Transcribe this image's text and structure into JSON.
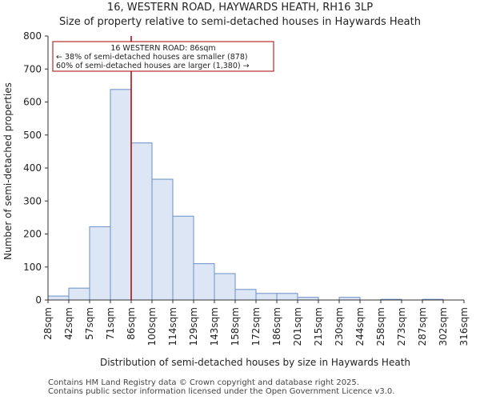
{
  "chart_data": {
    "type": "bar",
    "title": "16, WESTERN ROAD, HAYWARDS HEATH, RH16 3LP",
    "subtitle": "Size of property relative to semi-detached houses in Haywards Heath",
    "xlabel": "Distribution of semi-detached houses by size in Haywards Heath",
    "ylabel": "Number of semi-detached properties",
    "ylim": [
      0,
      800
    ],
    "yticks": [
      0,
      100,
      200,
      300,
      400,
      500,
      600,
      700,
      800
    ],
    "bin_edges": [
      28,
      42,
      57,
      71,
      86,
      100,
      114,
      129,
      143,
      158,
      172,
      186,
      201,
      215,
      230,
      244,
      258,
      273,
      287,
      302,
      316
    ],
    "tick_labels": [
      "28sqm",
      "42sqm",
      "57sqm",
      "71sqm",
      "86sqm",
      "100sqm",
      "114sqm",
      "129sqm",
      "143sqm",
      "158sqm",
      "172sqm",
      "186sqm",
      "201sqm",
      "215sqm",
      "230sqm",
      "244sqm",
      "258sqm",
      "273sqm",
      "287sqm",
      "302sqm",
      "316sqm"
    ],
    "values": [
      12,
      36,
      222,
      638,
      476,
      366,
      254,
      110,
      80,
      32,
      20,
      20,
      8,
      0,
      8,
      0,
      2,
      0,
      2,
      0
    ],
    "bar_color": "#dce6f5",
    "bar_edge_color": "#6b8fc9",
    "marker": {
      "value": 86,
      "color": "#aa0000",
      "label_lines": [
        "16 WESTERN ROAD: 86sqm",
        "← 38% of semi-detached houses are smaller (878)",
        "60% of semi-detached houses are larger (1,380) →"
      ]
    }
  },
  "footer": {
    "line1": "Contains HM Land Registry data © Crown copyright and database right 2025.",
    "line2": "Contains public sector information licensed under the Open Government Licence v3.0."
  }
}
